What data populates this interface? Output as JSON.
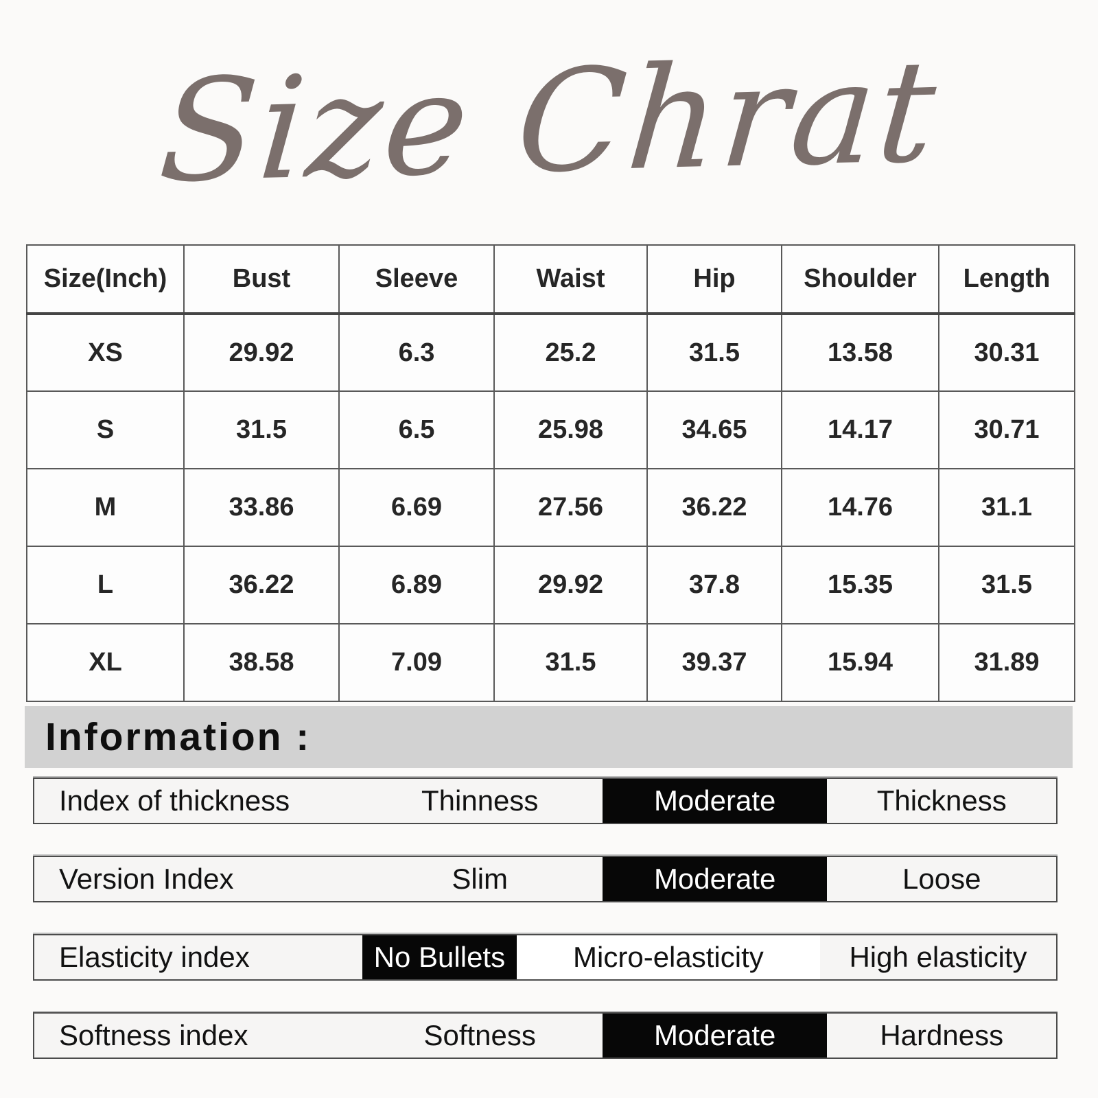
{
  "chart_data": {
    "type": "table",
    "title": "Size Chrat",
    "columns": [
      "Size(Inch)",
      "Bust",
      "Sleeve",
      "Waist",
      "Hip",
      "Shoulder",
      "Length"
    ],
    "rows": [
      [
        "XS",
        "29.92",
        "6.3",
        "25.2",
        "31.5",
        "13.58",
        "30.31"
      ],
      [
        "S",
        "31.5",
        "6.5",
        "25.98",
        "34.65",
        "14.17",
        "30.71"
      ],
      [
        "M",
        "33.86",
        "6.69",
        "27.56",
        "36.22",
        "14.76",
        "31.1"
      ],
      [
        "L",
        "36.22",
        "6.89",
        "29.92",
        "37.8",
        "15.35",
        "31.5"
      ],
      [
        "XL",
        "38.58",
        "7.09",
        "31.5",
        "39.37",
        "15.94",
        "31.89"
      ]
    ]
  },
  "information": {
    "heading": "Information :",
    "rows": [
      {
        "label": "Index of thickness",
        "options": [
          {
            "text": "Thinness",
            "selected": false
          },
          {
            "text": "Moderate",
            "selected": true
          },
          {
            "text": "Thickness",
            "selected": false
          }
        ]
      },
      {
        "label": "Version Index",
        "options": [
          {
            "text": "Slim",
            "selected": false
          },
          {
            "text": "Moderate",
            "selected": true
          },
          {
            "text": "Loose",
            "selected": false
          }
        ]
      },
      {
        "label": "Elasticity index",
        "options": [
          {
            "text": "No Bullets",
            "selected": true
          },
          {
            "text": "Micro-elasticity",
            "selected": false
          },
          {
            "text": "High elasticity",
            "selected": false
          }
        ]
      },
      {
        "label": "Softness index",
        "options": [
          {
            "text": "Softness",
            "selected": false
          },
          {
            "text": "Moderate",
            "selected": true
          },
          {
            "text": "Hardness",
            "selected": false
          }
        ]
      }
    ]
  },
  "colors": {
    "title_text": "#7b6f6c",
    "band_background": "#d2d2d2",
    "highlight_background": "#070707",
    "highlight_text": "#ffffff"
  }
}
